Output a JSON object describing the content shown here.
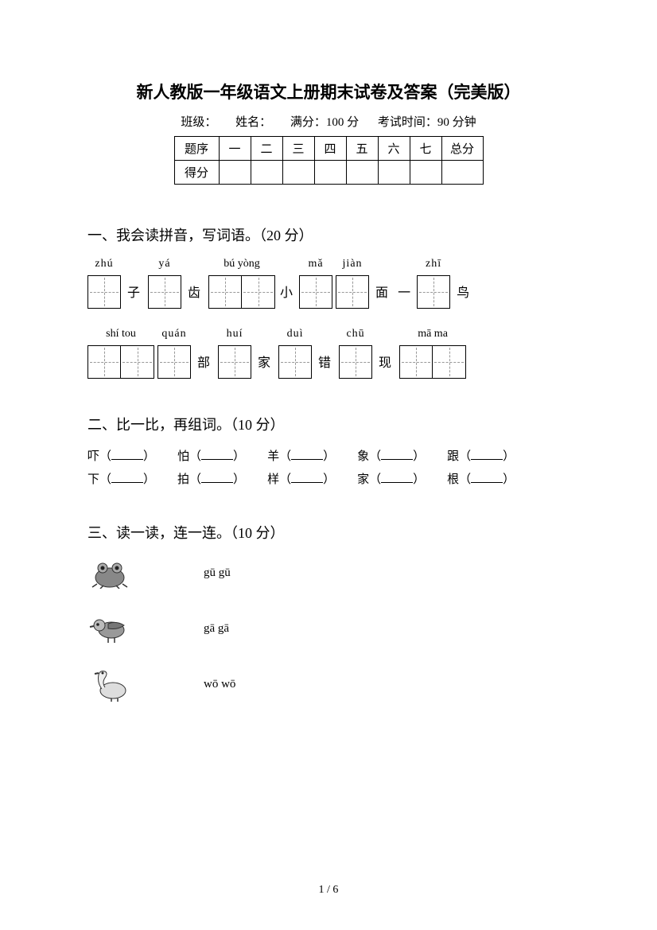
{
  "title": "新人教版一年级语文上册期末试卷及答案（完美版）",
  "meta": {
    "class_label": "班级：",
    "name_label": "姓名：",
    "fullmark_label": "满分：100 分",
    "time_label": "考试时间：90 分钟"
  },
  "score_table": {
    "row1": [
      "题序",
      "一",
      "二",
      "三",
      "四",
      "五",
      "六",
      "七",
      "总分"
    ],
    "row2_label": "得分"
  },
  "section1": {
    "heading": "一、我会读拼音，写词语。（20 分）",
    "row1": [
      {
        "pinyin": "zhú",
        "boxes": 1,
        "suffix": "子"
      },
      {
        "pinyin": "yá",
        "boxes": 1,
        "suffix": "齿"
      },
      {
        "pinyin": "bú  yòng",
        "boxes": 2,
        "suffix": ""
      },
      {
        "prefix": "小",
        "pinyin": "mǎ",
        "boxes": 1,
        "suffix": ""
      },
      {
        "pinyin": "jiàn",
        "boxes": 1,
        "prefix": "",
        "suffix": "面"
      },
      {
        "prefix": "一",
        "pinyin": "zhī",
        "boxes": 1,
        "suffix": "鸟"
      }
    ],
    "row2": [
      {
        "pinyin": "shí  tou",
        "boxes": 2,
        "suffix": ""
      },
      {
        "pinyin": "quán",
        "boxes": 1,
        "suffix": "部"
      },
      {
        "pinyin": "huí",
        "boxes": 1,
        "suffix": "家"
      },
      {
        "pinyin": "duì",
        "boxes": 1,
        "suffix": "错"
      },
      {
        "pinyin": "chū",
        "boxes": 1,
        "suffix": "现"
      },
      {
        "pinyin": "mā  ma",
        "boxes": 2,
        "suffix": ""
      }
    ]
  },
  "section2": {
    "heading": "二、比一比，再组词。（10 分）",
    "row1": [
      "吓",
      "怕",
      "羊",
      "象",
      "跟"
    ],
    "row2": [
      "下",
      "拍",
      "样",
      "家",
      "根"
    ]
  },
  "section3": {
    "heading": "三、读一读，连一连。（10 分）",
    "items": [
      {
        "icon": "frog",
        "label": "gū gū"
      },
      {
        "icon": "pigeon",
        "label": "gā gā"
      },
      {
        "icon": "goose",
        "label": "wō wō"
      }
    ]
  },
  "page_num": "1 / 6",
  "colors": {
    "text": "#000000",
    "bg": "#ffffff",
    "dash": "#999999"
  }
}
